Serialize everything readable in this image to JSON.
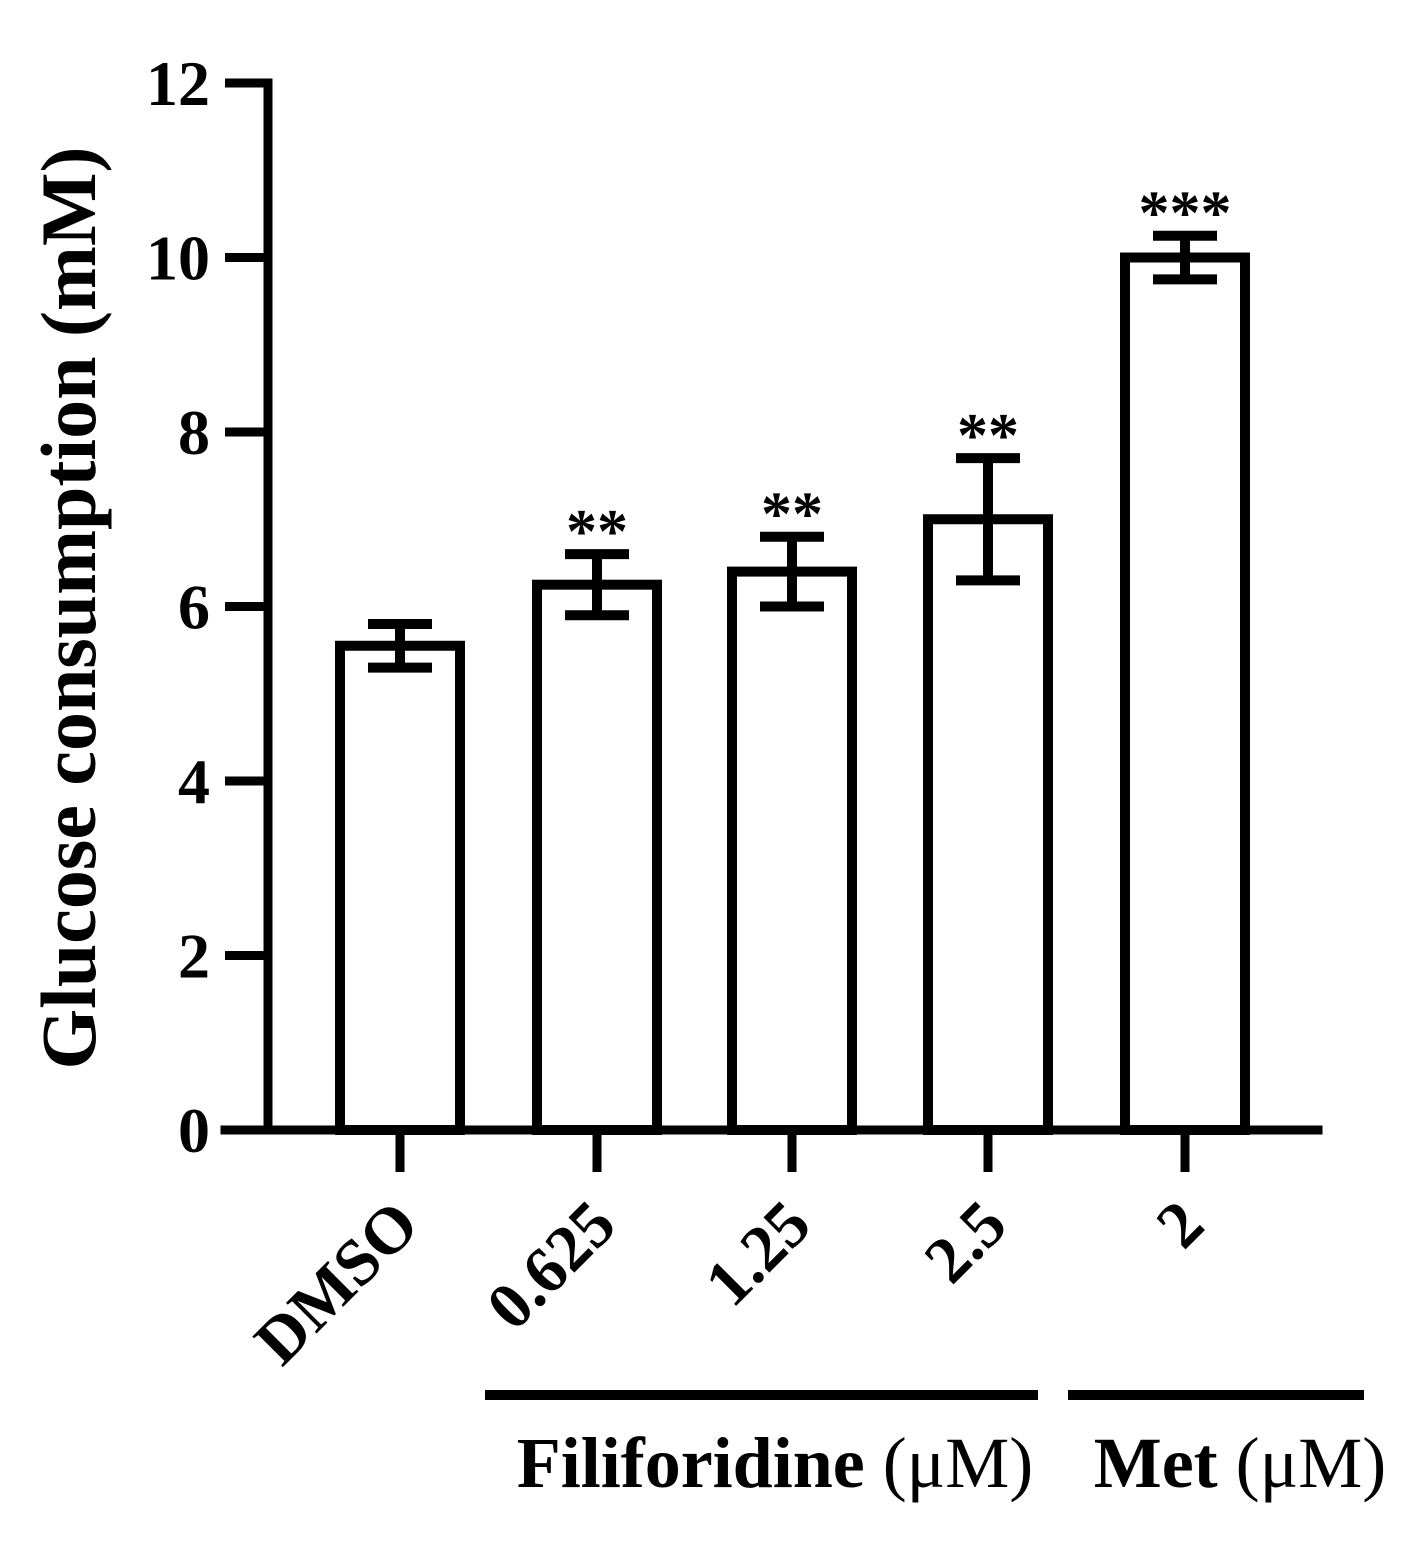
{
  "chart_data": {
    "type": "bar",
    "ylabel": "Glucose consumption (mM)",
    "ylim": [
      0,
      12
    ],
    "yticks": [
      "0",
      "2",
      "4",
      "6",
      "8",
      "10",
      "12"
    ],
    "categories": [
      "DMSO",
      "0.625",
      "1.25",
      "2.5",
      "2"
    ],
    "values": [
      5.55,
      6.25,
      6.4,
      7.0,
      10.0
    ],
    "errors": [
      0.25,
      0.35,
      0.4,
      0.7,
      0.25
    ],
    "significance": [
      "",
      "**",
      "**",
      "**",
      "***"
    ],
    "groups": [
      {
        "name": "Filiforidine",
        "unit": "(μM)",
        "categories": [
          "0.625",
          "1.25",
          "2.5"
        ]
      },
      {
        "name": "Met",
        "unit": "(μM)",
        "categories": [
          "2"
        ]
      }
    ]
  }
}
